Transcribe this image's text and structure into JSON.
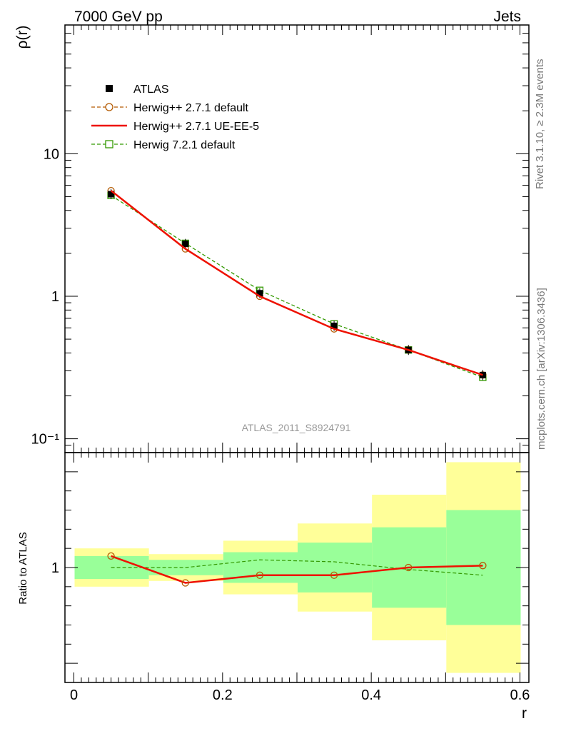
{
  "header": {
    "left": "7000 GeV pp",
    "right": "Jets"
  },
  "side_labels": {
    "rivet": "Rivet 3.1.10, ≥ 2.3M events",
    "source": "mcplots.cern.ch [arXiv:1306.3436]"
  },
  "colors": {
    "data": "#000000",
    "herwigpp_default": "#b35900",
    "herwigpp_ueee5": "#ee1100",
    "herwig7_default": "#339900",
    "band_inner": "#99ff99",
    "band_outer": "#ffff99",
    "watermark": "#999999"
  },
  "chart_data": [
    {
      "type": "line",
      "panel": "main",
      "analysis_label": "ATLAS_2011_S8924791",
      "ylabel": "ρ(r)",
      "yscale": "log",
      "ylim": [
        0.08,
        80
      ],
      "xlim": [
        -0.012,
        0.612
      ],
      "y_tick_labels": [
        "10⁻¹",
        "1",
        "10"
      ],
      "x": [
        0.05,
        0.15,
        0.25,
        0.35,
        0.45,
        0.55
      ],
      "series": [
        {
          "name": "ATLAS",
          "style": "markers",
          "values": [
            5.2,
            2.33,
            1.05,
            0.62,
            0.42,
            0.28
          ]
        },
        {
          "name": "Herwig++ 2.7.1 default",
          "style": "dashed-circle",
          "values": [
            5.5,
            2.15,
            1.0,
            0.59,
            0.42,
            0.28
          ]
        },
        {
          "name": "Herwig++ 2.7.1 UE-EE-5",
          "style": "solid",
          "values": [
            5.5,
            2.15,
            1.0,
            0.59,
            0.42,
            0.28
          ]
        },
        {
          "name": "Herwig 7.2.1 default",
          "style": "dashed-square",
          "values": [
            5.1,
            2.35,
            1.1,
            0.64,
            0.42,
            0.27
          ]
        }
      ]
    },
    {
      "type": "line",
      "panel": "ratio",
      "xlabel": "r",
      "ylabel": "Ratio to ATLAS",
      "ylim": [
        0.4,
        1.6
      ],
      "xlim": [
        -0.012,
        0.612
      ],
      "x_tick_labels": [
        "0",
        "0.2",
        "0.4",
        "0.6"
      ],
      "y_tick_labels": [
        "1"
      ],
      "bins": [
        [
          0.0,
          0.1
        ],
        [
          0.1,
          0.2
        ],
        [
          0.2,
          0.3
        ],
        [
          0.3,
          0.4
        ],
        [
          0.4,
          0.5
        ],
        [
          0.5,
          0.6
        ]
      ],
      "band_inner": [
        [
          0.94,
          1.06
        ],
        [
          0.96,
          1.04
        ],
        [
          0.92,
          1.08
        ],
        [
          0.87,
          1.13
        ],
        [
          0.79,
          1.21
        ],
        [
          0.7,
          1.3
        ]
      ],
      "band_outer": [
        [
          0.9,
          1.1
        ],
        [
          0.93,
          1.07
        ],
        [
          0.86,
          1.14
        ],
        [
          0.77,
          1.23
        ],
        [
          0.62,
          1.38
        ],
        [
          0.45,
          1.55
        ]
      ],
      "x": [
        0.05,
        0.15,
        0.25,
        0.35,
        0.45,
        0.55
      ],
      "series": [
        {
          "name": "Herwig++ 2.7.1 default",
          "values": [
            1.06,
            0.92,
            0.96,
            0.96,
            1.0,
            1.01
          ]
        },
        {
          "name": "Herwig++ 2.7.1 UE-EE-5",
          "values": [
            1.06,
            0.92,
            0.96,
            0.96,
            1.0,
            1.01
          ]
        },
        {
          "name": "Herwig 7.2.1 default",
          "values": [
            1.0,
            1.0,
            1.04,
            1.03,
            0.99,
            0.96
          ]
        }
      ]
    }
  ]
}
